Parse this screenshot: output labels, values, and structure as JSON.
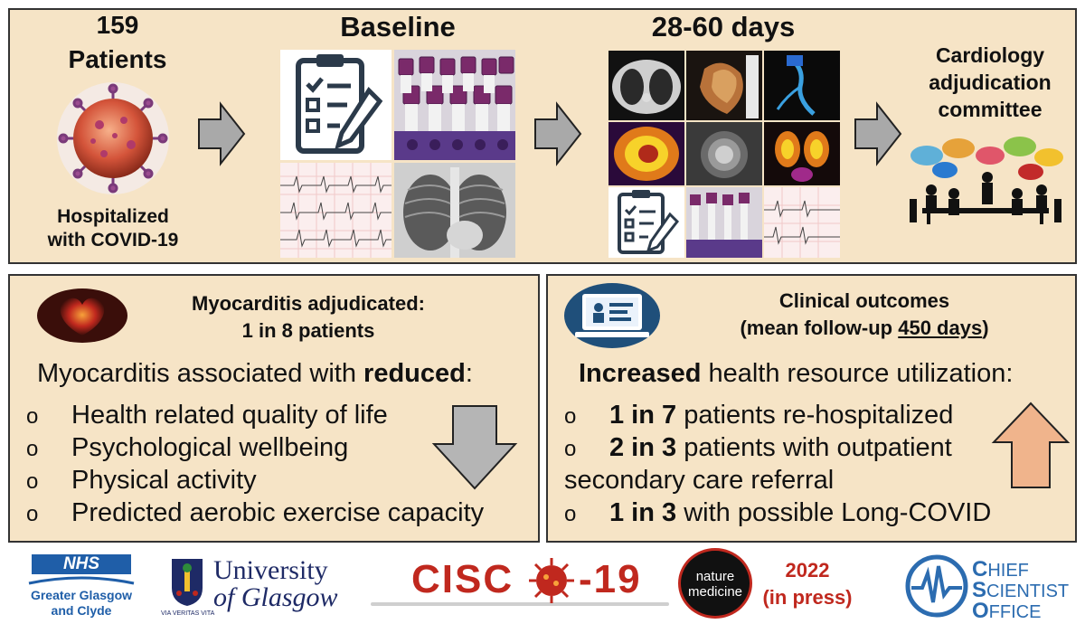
{
  "top": {
    "patients_count": "159",
    "patients_label": "Patients",
    "hospitalized_line1": "Hospitalized",
    "hospitalized_line2": "with COVID-19",
    "baseline_title": "Baseline",
    "followup_title": "28-60 days",
    "committee_line1": "Cardiology",
    "committee_line2": "adjudication",
    "committee_line3": "committee"
  },
  "left_panel": {
    "heading_line1": "Myocarditis adjudicated:",
    "heading_line2": "1 in 8 patients",
    "assoc_prefix": "Myocarditis associated with ",
    "assoc_bold": "reduced",
    "assoc_suffix": ":",
    "bullet_marker": "o",
    "items": [
      "Health related quality of life",
      "Psychological wellbeing",
      "Physical activity",
      "Predicted aerobic exercise capacity"
    ]
  },
  "right_panel": {
    "heading_line1": "Clinical outcomes",
    "heading_prefix": "(mean follow-up ",
    "heading_underlined": "450 days",
    "heading_suffix": ")",
    "util_bold": "Increased",
    "util_rest": " health resource utilization:",
    "bullet_marker": "o",
    "items": [
      {
        "bold": "1 in 7",
        "rest": " patients re-hospitalized"
      },
      {
        "bold": "2 in 3",
        "rest": " patients with outpatient"
      },
      {
        "bold": "1 in 3",
        "rest": " with possible Long-COVID"
      }
    ],
    "continuation": "secondary care referral"
  },
  "footer": {
    "nhs_mark": "NHS",
    "nhs_line1": "Greater Glasgow",
    "nhs_line2": "and Clyde",
    "uni_line1": "University",
    "uni_line2": "of Glasgow",
    "uni_motto": "VIA VERITAS VITA",
    "cisco_left": "CISC",
    "cisco_right": "-19",
    "nm_line1": "nature",
    "nm_line2": "medicine",
    "year": "2022",
    "press": "(in press)",
    "cso_line1_first": "C",
    "cso_line1_rest": "HIEF",
    "cso_line2_first": "S",
    "cso_line2_rest": "CIENTIST",
    "cso_line3_first": "O",
    "cso_line3_rest": "FFICE"
  },
  "colors": {
    "panel_bg": "#f6e4c6",
    "dark_red": "#c0281e",
    "nhs_blue": "#1f5ea8",
    "cso_blue": "#2c6cb0"
  },
  "icons": [
    "virus-icon",
    "clipboard-icon",
    "blood-tubes-icon",
    "ecg-icon",
    "xray-icon",
    "ct-scan-icon",
    "heart-3d-icon",
    "angiogram-icon",
    "cmr-icon",
    "people-meeting-icon",
    "heart-icon",
    "computer-record-icon",
    "down-arrow-icon",
    "up-arrow-icon",
    "right-arrow-icon"
  ]
}
